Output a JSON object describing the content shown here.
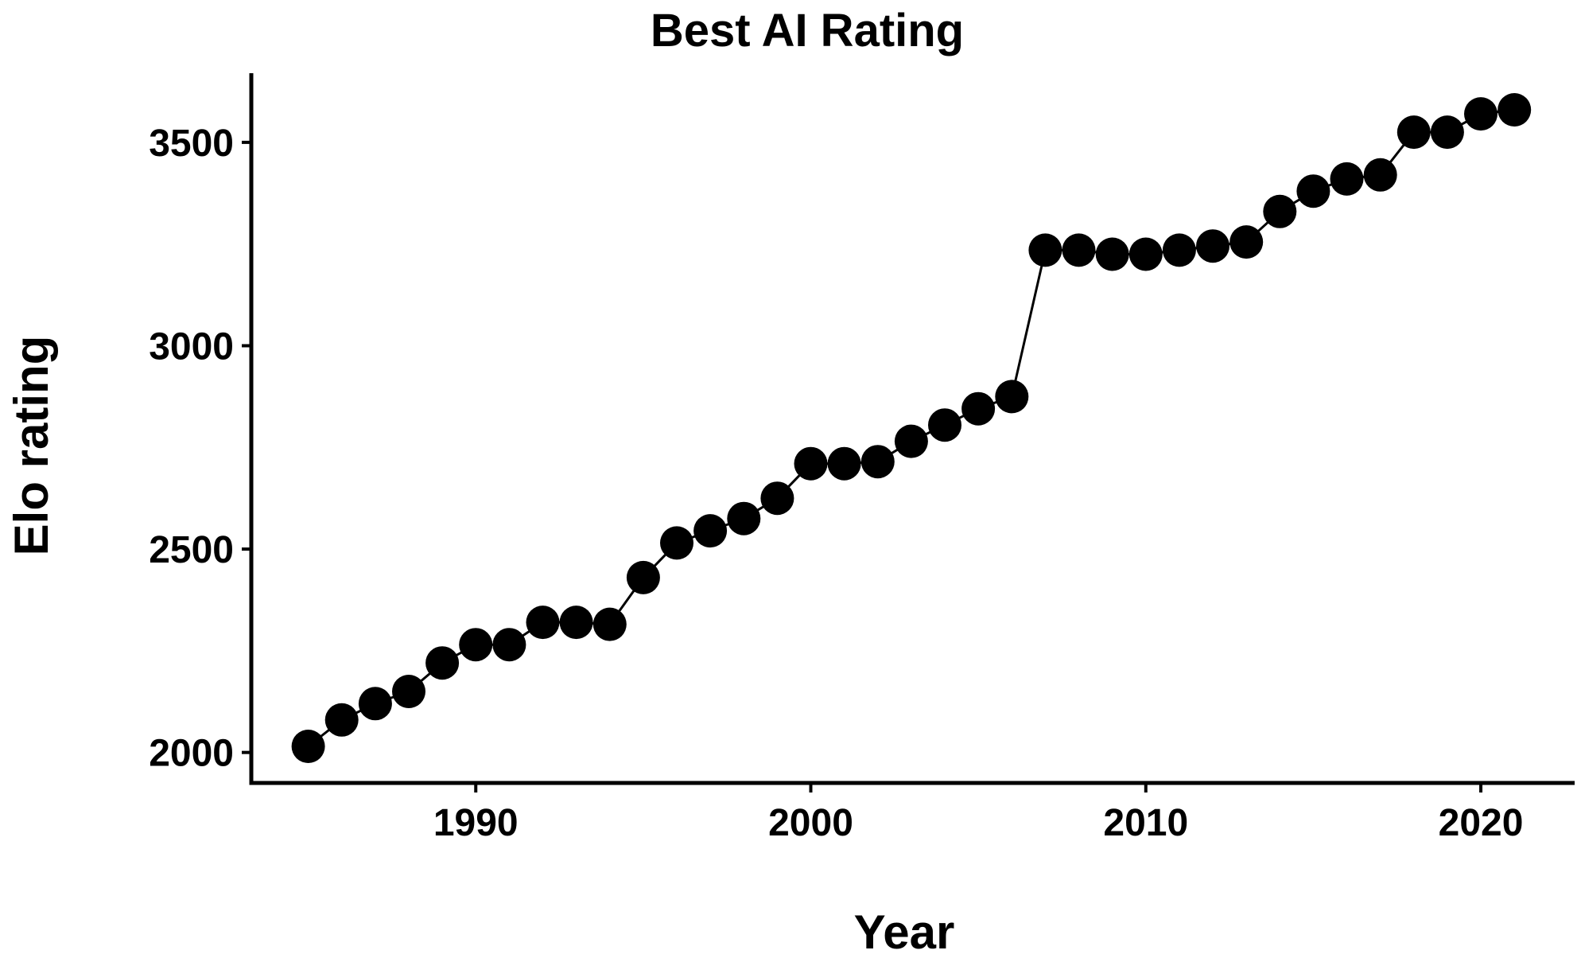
{
  "chart_data": {
    "type": "line",
    "title": "Best AI Rating",
    "xlabel": "Year",
    "ylabel": "Elo rating",
    "xlim": [
      1983.3,
      2022.8
    ],
    "ylim": [
      1925,
      3670
    ],
    "x_ticks": [
      1990,
      2000,
      2010,
      2020
    ],
    "y_ticks": [
      2000,
      2500,
      3000,
      3500
    ],
    "x_tick_labels": [
      "1990",
      "2000",
      "2010",
      "2020"
    ],
    "y_tick_labels": [
      "2000",
      "2500",
      "3000",
      "3500"
    ],
    "grid": false,
    "legend": "none",
    "series": [
      {
        "x": [
          1985,
          1986,
          1987,
          1988,
          1989,
          1990,
          1991,
          1992,
          1993,
          1994,
          1995,
          1996,
          1997,
          1998,
          1999,
          2000,
          2001,
          2002,
          2003,
          2004,
          2005,
          2006,
          2007,
          2008,
          2009,
          2010,
          2011,
          2012,
          2013,
          2014,
          2015,
          2016,
          2017,
          2018,
          2019,
          2020,
          2021
        ],
        "values": [
          2015,
          2080,
          2120,
          2150,
          2220,
          2265,
          2265,
          2320,
          2320,
          2315,
          2430,
          2515,
          2545,
          2575,
          2625,
          2710,
          2710,
          2715,
          2765,
          2805,
          2845,
          2875,
          3235,
          3235,
          3225,
          3225,
          3235,
          3245,
          3255,
          3330,
          3380,
          3410,
          3420,
          3525,
          3525,
          3570,
          3580
        ]
      }
    ],
    "colors": {
      "marker": "#000000",
      "line": "#000000",
      "axis": "#000000",
      "background": "#ffffff"
    }
  }
}
